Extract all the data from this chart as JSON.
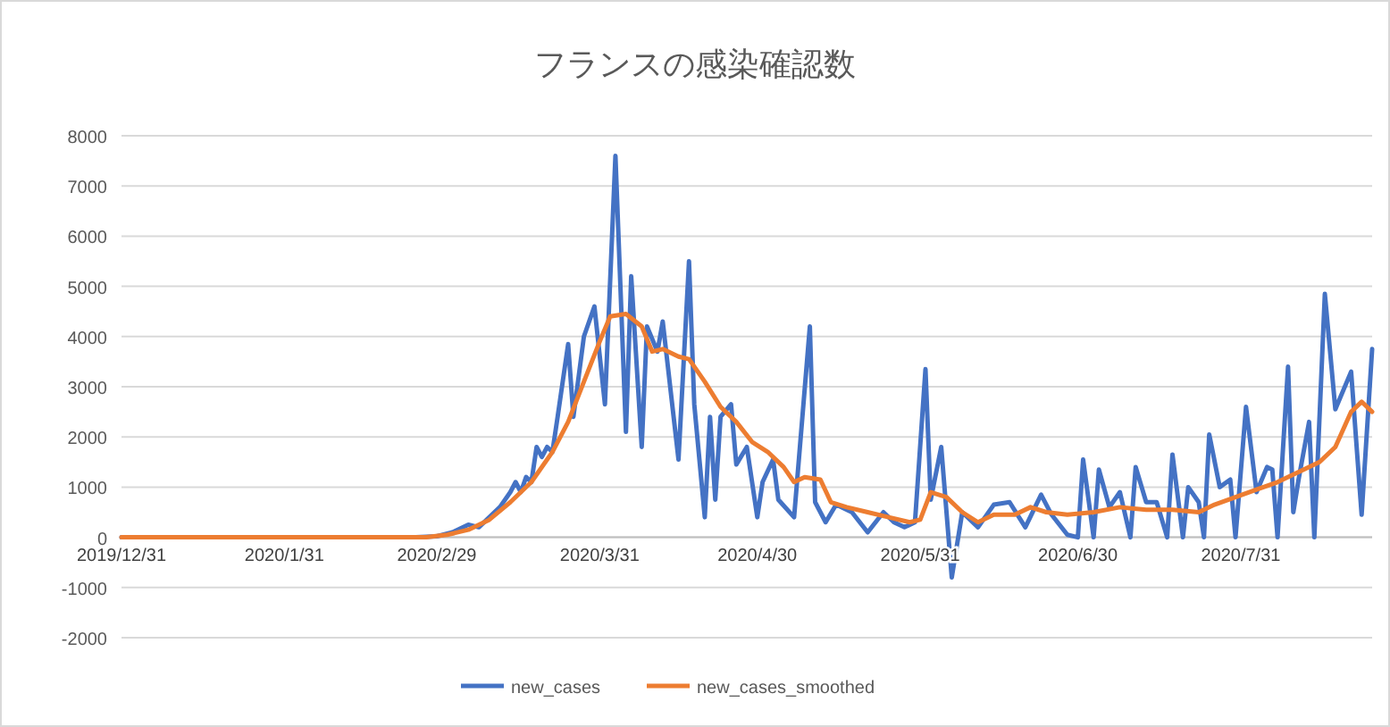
{
  "chart_data": {
    "type": "line",
    "title": "フランスの感染確認数",
    "xlim": [
      "2019-12-31",
      "2020-08-25"
    ],
    "xticks": [
      {
        "value": "2019-12-31",
        "label": "2019/12/31"
      },
      {
        "value": "2020-01-31",
        "label": "2020/1/31"
      },
      {
        "value": "2020-02-29",
        "label": "2020/2/29"
      },
      {
        "value": "2020-03-31",
        "label": "2020/3/31"
      },
      {
        "value": "2020-04-30",
        "label": "2020/4/30"
      },
      {
        "value": "2020-05-31",
        "label": "2020/5/31"
      },
      {
        "value": "2020-06-30",
        "label": "2020/6/30"
      },
      {
        "value": "2020-07-31",
        "label": "2020/7/31"
      }
    ],
    "ylim": [
      -2000,
      8000
    ],
    "yticks": [
      -2000,
      -1000,
      0,
      1000,
      2000,
      3000,
      4000,
      5000,
      6000,
      7000,
      8000
    ],
    "grid": "y",
    "legend": "bottom",
    "series": [
      {
        "name": "new_cases",
        "color": "#4472c4",
        "x": [
          "2019-12-31",
          "2020-01-30",
          "2020-02-25",
          "2020-02-29",
          "2020-03-03",
          "2020-03-06",
          "2020-03-08",
          "2020-03-10",
          "2020-03-12",
          "2020-03-14",
          "2020-03-15",
          "2020-03-16",
          "2020-03-17",
          "2020-03-18",
          "2020-03-19",
          "2020-03-20",
          "2020-03-21",
          "2020-03-22",
          "2020-03-23",
          "2020-03-25",
          "2020-03-26",
          "2020-03-28",
          "2020-03-30",
          "2020-04-01",
          "2020-04-03",
          "2020-04-05",
          "2020-04-06",
          "2020-04-08",
          "2020-04-09",
          "2020-04-11",
          "2020-04-12",
          "2020-04-15",
          "2020-04-17",
          "2020-04-18",
          "2020-04-20",
          "2020-04-21",
          "2020-04-22",
          "2020-04-23",
          "2020-04-25",
          "2020-04-26",
          "2020-04-28",
          "2020-04-30",
          "2020-05-01",
          "2020-05-03",
          "2020-05-04",
          "2020-05-07",
          "2020-05-10",
          "2020-05-11",
          "2020-05-13",
          "2020-05-15",
          "2020-05-18",
          "2020-05-21",
          "2020-05-24",
          "2020-05-26",
          "2020-05-28",
          "2020-05-30",
          "2020-06-01",
          "2020-06-02",
          "2020-06-04",
          "2020-06-06",
          "2020-06-08",
          "2020-06-11",
          "2020-06-14",
          "2020-06-17",
          "2020-06-20",
          "2020-06-23",
          "2020-06-25",
          "2020-06-28",
          "2020-06-30",
          "2020-07-01",
          "2020-07-03",
          "2020-07-04",
          "2020-07-06",
          "2020-07-08",
          "2020-07-10",
          "2020-07-11",
          "2020-07-13",
          "2020-07-15",
          "2020-07-17",
          "2020-07-18",
          "2020-07-20",
          "2020-07-21",
          "2020-07-23",
          "2020-07-24",
          "2020-07-25",
          "2020-07-27",
          "2020-07-29",
          "2020-07-30",
          "2020-08-01",
          "2020-08-03",
          "2020-08-05",
          "2020-08-06",
          "2020-08-07",
          "2020-08-09",
          "2020-08-10",
          "2020-08-11",
          "2020-08-13",
          "2020-08-14",
          "2020-08-16",
          "2020-08-18",
          "2020-08-21",
          "2020-08-23",
          "2020-08-25"
        ],
        "values": [
          0,
          0,
          0,
          20,
          100,
          250,
          200,
          400,
          600,
          900,
          1100,
          900,
          1200,
          1100,
          1800,
          1600,
          1800,
          1700,
          2400,
          3850,
          2400,
          4000,
          4600,
          2650,
          7600,
          2100,
          5200,
          1800,
          4200,
          3700,
          4300,
          1550,
          5500,
          2650,
          400,
          2400,
          750,
          2400,
          2650,
          1450,
          1800,
          400,
          1100,
          1550,
          750,
          400,
          4200,
          700,
          300,
          650,
          500,
          100,
          500,
          300,
          200,
          300,
          3350,
          750,
          1800,
          -800,
          500,
          200,
          650,
          700,
          200,
          850,
          450,
          50,
          0,
          1550,
          0,
          1350,
          600,
          900,
          0,
          1400,
          700,
          700,
          0,
          1650,
          0,
          1000,
          700,
          0,
          2050,
          1000,
          1150,
          0,
          2600,
          900,
          1400,
          1350,
          0,
          3400,
          500,
          1150,
          2300,
          0,
          4850,
          2550,
          3300,
          450,
          3750
        ]
      },
      {
        "name": "new_cases_smoothed",
        "color": "#ed7d31",
        "x": [
          "2019-12-31",
          "2020-02-27",
          "2020-03-02",
          "2020-03-06",
          "2020-03-10",
          "2020-03-14",
          "2020-03-18",
          "2020-03-22",
          "2020-03-25",
          "2020-03-28",
          "2020-03-31",
          "2020-04-02",
          "2020-04-05",
          "2020-04-08",
          "2020-04-10",
          "2020-04-12",
          "2020-04-15",
          "2020-04-17",
          "2020-04-20",
          "2020-04-23",
          "2020-04-26",
          "2020-04-29",
          "2020-05-02",
          "2020-05-05",
          "2020-05-07",
          "2020-05-09",
          "2020-05-12",
          "2020-05-14",
          "2020-05-17",
          "2020-05-21",
          "2020-05-25",
          "2020-05-29",
          "2020-05-31",
          "2020-06-02",
          "2020-06-05",
          "2020-06-08",
          "2020-06-11",
          "2020-06-14",
          "2020-06-18",
          "2020-06-21",
          "2020-06-24",
          "2020-06-28",
          "2020-07-03",
          "2020-07-08",
          "2020-07-13",
          "2020-07-18",
          "2020-07-23",
          "2020-07-26",
          "2020-07-30",
          "2020-08-03",
          "2020-08-07",
          "2020-08-11",
          "2020-08-15",
          "2020-08-18",
          "2020-08-21",
          "2020-08-23",
          "2020-08-25"
        ],
        "values": [
          0,
          0,
          50,
          150,
          350,
          700,
          1100,
          1700,
          2300,
          3100,
          3900,
          4400,
          4450,
          4200,
          3700,
          3750,
          3600,
          3550,
          3100,
          2600,
          2300,
          1900,
          1700,
          1400,
          1100,
          1200,
          1150,
          700,
          600,
          500,
          400,
          300,
          350,
          900,
          800,
          500,
          300,
          450,
          450,
          600,
          500,
          450,
          500,
          600,
          550,
          550,
          500,
          650,
          800,
          950,
          1100,
          1300,
          1500,
          1800,
          2500,
          2700,
          2500
        ]
      }
    ]
  }
}
